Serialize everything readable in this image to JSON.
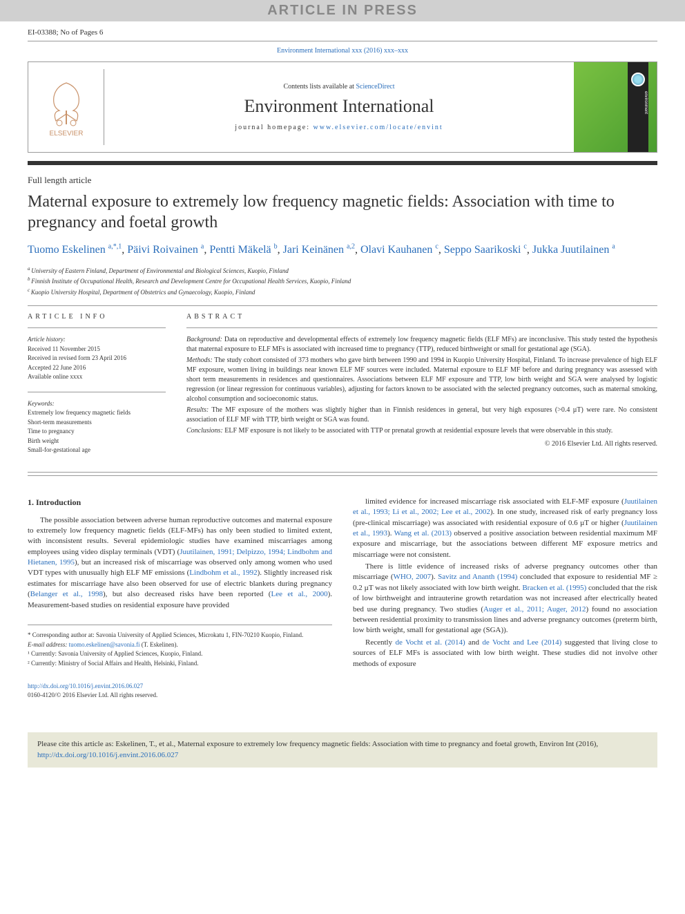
{
  "banner": {
    "text": "ARTICLE IN PRESS"
  },
  "docid": {
    "left": "EI-03388; No of Pages 6",
    "right": ""
  },
  "journal_ref": "Environment International xxx (2016) xxx–xxx",
  "masthead": {
    "contents_prefix": "Contents lists available at ",
    "contents_link": "ScienceDirect",
    "journal_name": "Environment International",
    "homepage_label": "journal homepage: ",
    "homepage_url": "www.elsevier.com/locate/envint",
    "publisher": "ELSEVIER",
    "cover_label": "environment"
  },
  "article": {
    "type": "Full length article",
    "title": "Maternal exposure to extremely low frequency magnetic fields: Association with time to pregnancy and foetal growth"
  },
  "authors": [
    {
      "name": "Tuomo Eskelinen",
      "marks": "a,*,1"
    },
    {
      "name": "Päivi Roivainen",
      "marks": "a"
    },
    {
      "name": "Pentti Mäkelä",
      "marks": "b"
    },
    {
      "name": "Jari Keinänen",
      "marks": "a,2"
    },
    {
      "name": "Olavi Kauhanen",
      "marks": "c"
    },
    {
      "name": "Seppo Saarikoski",
      "marks": "c"
    },
    {
      "name": "Jukka Juutilainen",
      "marks": "a"
    }
  ],
  "affiliations": [
    {
      "mark": "a",
      "text": "University of Eastern Finland, Department of Environmental and Biological Sciences, Kuopio, Finland"
    },
    {
      "mark": "b",
      "text": "Finnish Institute of Occupational Health, Research and Development Centre for Occupational Health Services, Kuopio, Finland"
    },
    {
      "mark": "c",
      "text": "Kuopio University Hospital, Department of Obstetrics and Gynaecology, Kuopio, Finland"
    }
  ],
  "info": {
    "heading": "ARTICLE INFO",
    "history_label": "Article history:",
    "history": [
      "Received 11 November 2015",
      "Received in revised form 23 April 2016",
      "Accepted 22 June 2016",
      "Available online xxxx"
    ],
    "keywords_label": "Keywords:",
    "keywords": [
      "Extremely low frequency magnetic fields",
      "Short-term measurements",
      "Time to pregnancy",
      "Birth weight",
      "Small-for-gestational age"
    ]
  },
  "abstract": {
    "heading": "ABSTRACT",
    "background_label": "Background:",
    "background": " Data on reproductive and developmental effects of extremely low frequency magnetic fields (ELF MFs) are inconclusive. This study tested the hypothesis that maternal exposure to ELF MFs is associated with increased time to pregnancy (TTP), reduced birthweight or small for gestational age (SGA).",
    "methods_label": "Methods:",
    "methods": " The study cohort consisted of 373 mothers who gave birth between 1990 and 1994 in Kuopio University Hospital, Finland. To increase prevalence of high ELF MF exposure, women living in buildings near known ELF MF sources were included. Maternal exposure to ELF MF before and during pregnancy was assessed with short term measurements in residences and questionnaires. Associations between ELF MF exposure and TTP, low birth weight and SGA were analysed by logistic regression (or linear regression for continuous variables), adjusting for factors known to be associated with the selected pregnancy outcomes, such as maternal smoking, alcohol consumption and socioeconomic status.",
    "results_label": "Results:",
    "results": " The MF exposure of the mothers was slightly higher than in Finnish residences in general, but very high exposures (>0.4 µT) were rare. No consistent association of ELF MF with TTP, birth weight or SGA was found.",
    "conclusions_label": "Conclusions:",
    "conclusions": " ELF MF exposure is not likely to be associated with TTP or prenatal growth at residential exposure levels that were observable in this study.",
    "copyright": "© 2016 Elsevier Ltd. All rights reserved."
  },
  "body": {
    "section_heading": "1. Introduction",
    "left": [
      {
        "pre": "The possible association between adverse human reproductive outcomes and maternal exposure to extremely low frequency magnetic fields (ELF-MFs) has only been studied to limited extent, with inconsistent results. Several epidemiologic studies have examined miscarriages among employees using video display terminals (VDT) (",
        "c1": "Juutilainen, 1991; Delpizzo, 1994; Lindbohm and Hietanen, 1995",
        "mid1": "), but an increased risk of miscarriage was observed only among women who used VDT types with unusually high ELF MF emissions (",
        "c2": "Lindbohm et al., 1992",
        "mid2": "). Slightly increased risk estimates for miscarriage have also been observed for use of electric blankets during pregnancy (",
        "c3": "Belanger et al., 1998",
        "mid3": "), but also decreased risks have been reported (",
        "c4": "Lee et al., 2000",
        "post": "). Measurement-based studies on residential exposure have provided"
      }
    ],
    "right": [
      {
        "pre": "limited evidence for increased miscarriage risk associated with ELF-MF exposure (",
        "c1": "Juutilainen et al., 1993; Li et al., 2002; Lee et al., 2002",
        "mid1": "). In one study, increased risk of early pregnancy loss (pre-clinical miscarriage) was associated with residential exposure of 0.6 µT or higher (",
        "c2": "Juutilainen et al., 1993",
        "mid2": "). ",
        "c3": "Wang et al. (2013)",
        "post": " observed a positive association between residential maximum MF exposure and miscarriage, but the associations between different MF exposure metrics and miscarriage were not consistent."
      },
      {
        "pre": "There is little evidence of increased risks of adverse pregnancy outcomes other than miscarriage (",
        "c1": "WHO, 2007",
        "mid1": "). ",
        "c2": "Savitz and Ananth (1994)",
        "mid2": " concluded that exposure to residential MF ≥ 0.2 µT was not likely associated with low birth weight. ",
        "c3": "Bracken et al. (1995)",
        "mid3": " concluded that the risk of low birthweight and intrauterine growth retardation was not increased after electrically heated bed use during pregnancy. Two studies (",
        "c4": "Auger et al., 2011; Auger, 2012",
        "post": ") found no association between residential proximity to transmission lines and adverse pregnancy outcomes (preterm birth, low birth weight, small for gestational age (SGA))."
      },
      {
        "pre": "Recently ",
        "c1": "de Vocht et al. (2014)",
        "mid1": " and ",
        "c2": "de Vocht and Lee (2014)",
        "post": " suggested that living close to sources of ELF MFs is associated with low birth weight. These studies did not involve other methods of exposure"
      }
    ]
  },
  "footnotes": {
    "corr": "* Corresponding author at: Savonia University of Applied Sciences, Microkatu 1, FIN-70210 Kuopio, Finland.",
    "email_label": "E-mail address: ",
    "email": "tuomo.eskelinen@savonia.fi",
    "email_who": " (T. Eskelinen).",
    "n1": "¹ Currently: Savonia University of Applied Sciences, Kuopio, Finland.",
    "n2": "² Currently: Ministry of Social Affairs and Health, Helsinki, Finland."
  },
  "doi": {
    "url": "http://dx.doi.org/10.1016/j.envint.2016.06.027",
    "issn": "0160-4120/© 2016 Elsevier Ltd. All rights reserved."
  },
  "citebox": {
    "pre": "Please cite this article as: Eskelinen, T., et al., Maternal exposure to extremely low frequency magnetic fields: Association with time to pregnancy and foetal growth, Environ Int (2016), ",
    "link": "http://dx.doi.org/10.1016/j.envint.2016.06.027"
  },
  "colors": {
    "link": "#2a6ebb",
    "banner_bg": "#d0d0d0",
    "banner_fg": "#888888",
    "divider": "#333333",
    "citebox_bg": "#e8e8d8"
  }
}
